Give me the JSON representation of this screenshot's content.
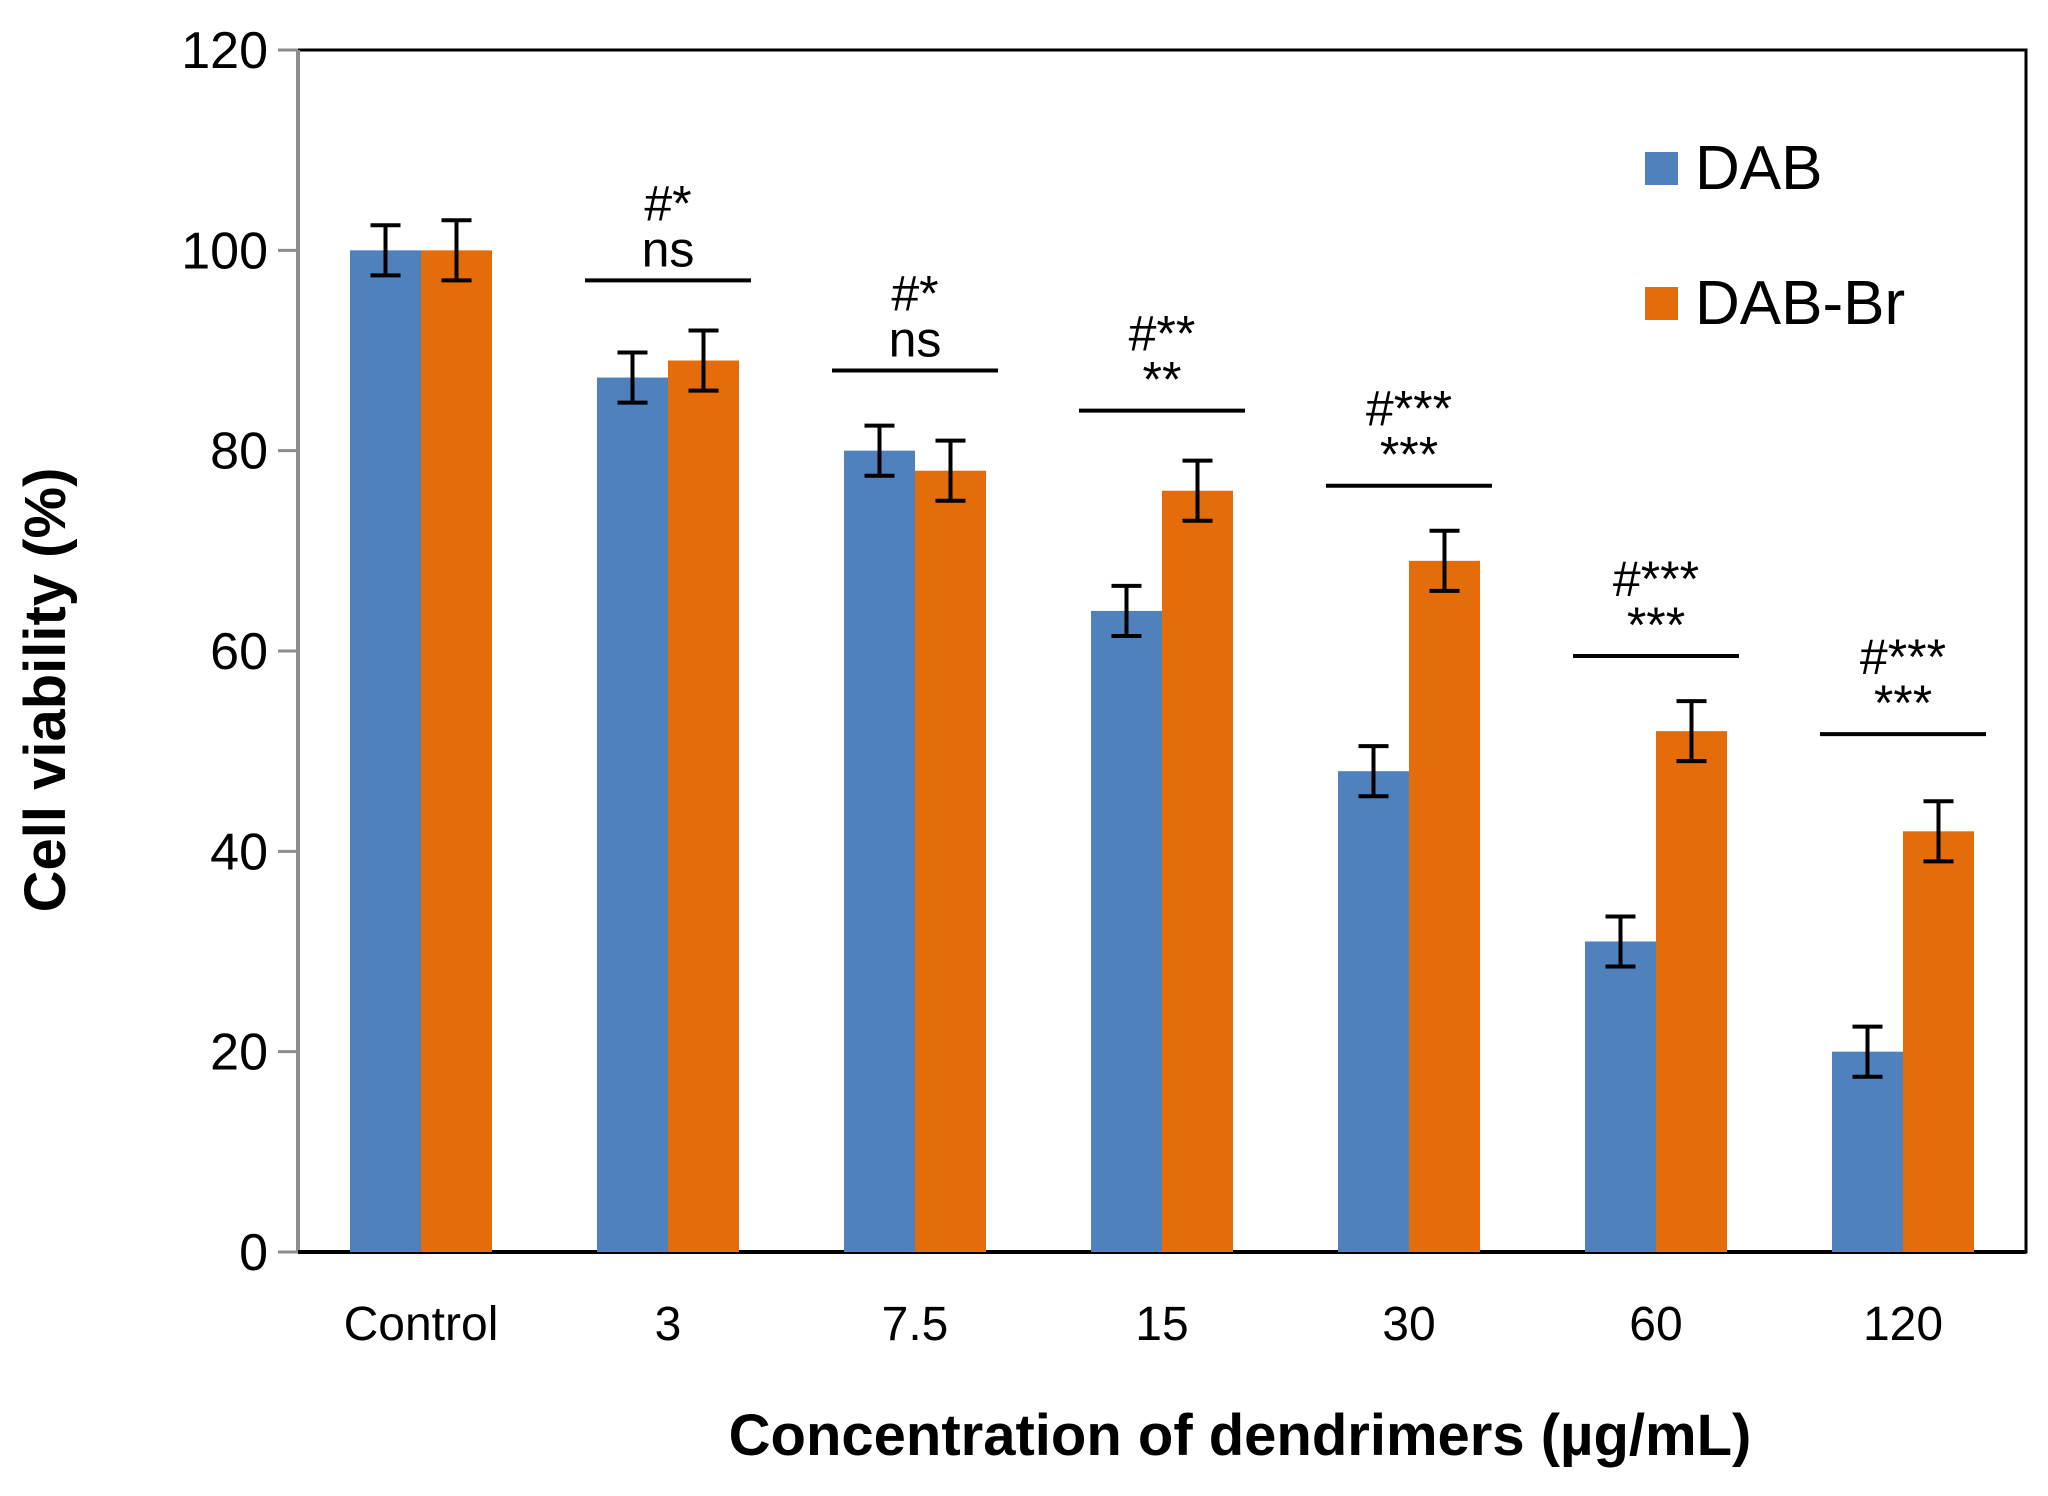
{
  "chart_data": {
    "type": "bar",
    "xlabel": "Concentration of dendrimers (µg/mL)",
    "ylabel": "Cell viability (%)",
    "ylim": [
      0,
      120
    ],
    "yticks": [
      0,
      20,
      40,
      60,
      80,
      100,
      120
    ],
    "grid": false,
    "legend": {
      "placement": "top-right"
    },
    "categories": [
      "Control",
      "3",
      "7.5",
      "15",
      "30",
      "60",
      "120"
    ],
    "series": [
      {
        "name": "DAB",
        "color": "#4f81bd",
        "values": [
          100,
          87.3,
          80,
          64,
          48,
          31,
          20
        ],
        "errors": [
          2.5,
          2.5,
          2.5,
          2.5,
          2.5,
          2.5,
          2.5
        ]
      },
      {
        "name": "DAB-Br",
        "color": "#e46c0a",
        "values": [
          100,
          89,
          78,
          76,
          69,
          52,
          42
        ],
        "errors": [
          3,
          3,
          3,
          3,
          3,
          3,
          3
        ]
      }
    ],
    "annotations": [
      {
        "category": "3",
        "line1": "#*",
        "line2": "ns",
        "level": 97
      },
      {
        "category": "7.5",
        "line1": "#*",
        "line2": "ns",
        "level": 88
      },
      {
        "category": "15",
        "line1": "#**",
        "line2": "**",
        "level": 84
      },
      {
        "category": "30",
        "line1": "#***",
        "line2": "***",
        "level": 76.5
      },
      {
        "category": "60",
        "line1": "#***",
        "line2": "***",
        "level": 59.5
      },
      {
        "category": "120",
        "line1": "#***",
        "line2": "***",
        "level": 51.7
      }
    ]
  }
}
